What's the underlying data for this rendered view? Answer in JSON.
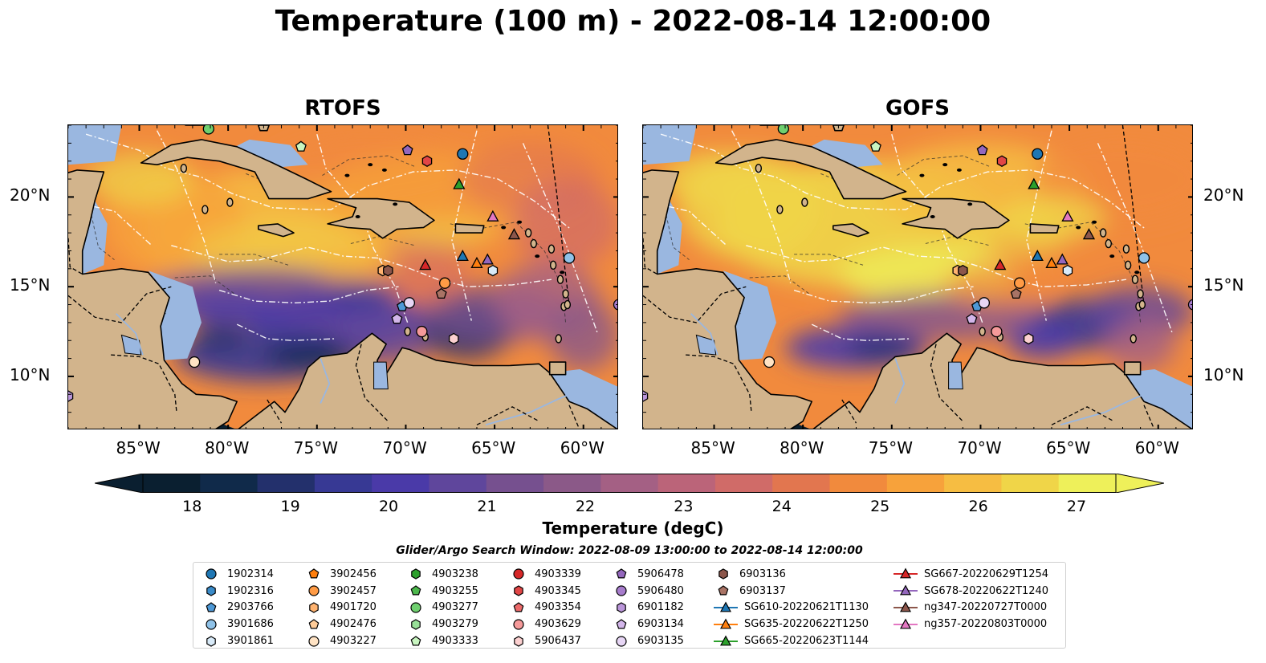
{
  "title": "Temperature (100 m) - 2022-08-14 12:00:00",
  "panels": [
    {
      "title": "RTOFS"
    },
    {
      "title": "GOFS"
    }
  ],
  "axes": {
    "lon_ticks": [
      "85°W",
      "80°W",
      "75°W",
      "70°W",
      "65°W",
      "60°W"
    ],
    "lon_values": [
      -85,
      -80,
      -75,
      -70,
      -65,
      -60
    ],
    "lat_ticks": [
      "20°N",
      "15°N",
      "10°N"
    ],
    "lat_values": [
      20,
      15,
      10
    ],
    "lon_range": [
      -89,
      -58
    ],
    "lat_range": [
      7,
      24
    ]
  },
  "colorbar": {
    "label": "Temperature (degC)",
    "ticks": [
      "18",
      "19",
      "20",
      "21",
      "22",
      "23",
      "24",
      "25",
      "26",
      "27"
    ],
    "range": [
      17.5,
      27.4
    ],
    "colors": [
      "#0a1f30",
      "#102a4a",
      "#23306c",
      "#373994",
      "#4a3aa8",
      "#5f469c",
      "#76508f",
      "#8b5988",
      "#a46084",
      "#bb6479",
      "#d06b68",
      "#e2764f",
      "#f18a3d",
      "#f7a23b",
      "#f6bd42",
      "#f0d548",
      "#eef05a"
    ]
  },
  "search_window": "Glider/Argo Search Window: 2022-08-09 13:00:00 to 2022-08-14 12:00:00",
  "legend": [
    {
      "label": "1902314",
      "marker": "circle",
      "color": "#1f77b4"
    },
    {
      "label": "1902316",
      "marker": "hexagon",
      "color": "#3a8bc9"
    },
    {
      "label": "2903766",
      "marker": "pentagon",
      "color": "#4d98d6"
    },
    {
      "label": "3901686",
      "marker": "circle",
      "color": "#8fc2e8"
    },
    {
      "label": "3901861",
      "marker": "hexagon",
      "color": "#d8eaf8"
    },
    {
      "label": "3902456",
      "marker": "pentagon",
      "color": "#ff7f0e"
    },
    {
      "label": "3902457",
      "marker": "circle",
      "color": "#ff9b45"
    },
    {
      "label": "4901720",
      "marker": "hexagon",
      "color": "#ffb370"
    },
    {
      "label": "4902476",
      "marker": "pentagon",
      "color": "#ffcc99"
    },
    {
      "label": "4903227",
      "marker": "circle",
      "color": "#ffe3c4"
    },
    {
      "label": "4903238",
      "marker": "hexagon",
      "color": "#2ca02c"
    },
    {
      "label": "4903255",
      "marker": "pentagon",
      "color": "#4cb84c"
    },
    {
      "label": "4903277",
      "marker": "circle",
      "color": "#6fd06f"
    },
    {
      "label": "4903279",
      "marker": "hexagon",
      "color": "#98e098"
    },
    {
      "label": "4903333",
      "marker": "pentagon",
      "color": "#c8f5c0"
    },
    {
      "label": "4903339",
      "marker": "circle",
      "color": "#d62728"
    },
    {
      "label": "4903345",
      "marker": "hexagon",
      "color": "#e24646"
    },
    {
      "label": "4903354",
      "marker": "pentagon",
      "color": "#ec6a6a"
    },
    {
      "label": "4903629",
      "marker": "circle",
      "color": "#f59a9a"
    },
    {
      "label": "5906437",
      "marker": "hexagon",
      "color": "#fcd0d0"
    },
    {
      "label": "5906478",
      "marker": "pentagon",
      "color": "#9467bd"
    },
    {
      "label": "5906480",
      "marker": "circle",
      "color": "#a77ccc"
    },
    {
      "label": "6901182",
      "marker": "hexagon",
      "color": "#bb96da"
    },
    {
      "label": "6903134",
      "marker": "pentagon",
      "color": "#d3b6ea"
    },
    {
      "label": "6903135",
      "marker": "circle",
      "color": "#e7d6f5"
    },
    {
      "label": "6903136",
      "marker": "hexagon",
      "color": "#8c564b"
    },
    {
      "label": "6903137",
      "marker": "pentagon",
      "color": "#a97365"
    },
    {
      "label": "SG610-20220621T1130",
      "marker": "triangle",
      "color": "#1f77b4",
      "line": true
    },
    {
      "label": "SG635-20220622T1250",
      "marker": "triangle",
      "color": "#ff7f0e",
      "line": true
    },
    {
      "label": "SG665-20220623T1144",
      "marker": "triangle",
      "color": "#2ca02c",
      "line": true
    },
    {
      "label": "SG667-20220629T1254",
      "marker": "triangle",
      "color": "#d62728",
      "line": true
    },
    {
      "label": "SG678-20220622T1240",
      "marker": "triangle",
      "color": "#9467bd",
      "line": true
    },
    {
      "label": "ng347-20220727T0000",
      "marker": "triangle",
      "color": "#8c564b",
      "line": true
    },
    {
      "label": "ng357-20220803T0000",
      "marker": "triangle",
      "color": "#e377c2",
      "line": true
    }
  ],
  "observations": [
    {
      "platform": "1902314",
      "lon": -66.8,
      "lat": 22.4
    },
    {
      "platform": "3901686",
      "lon": -60.8,
      "lat": 16.6
    },
    {
      "platform": "3901861",
      "lon": -65.1,
      "lat": 15.9
    },
    {
      "platform": "2903766",
      "lon": -70.2,
      "lat": 13.9
    },
    {
      "platform": "3902457",
      "lon": -67.8,
      "lat": 15.2
    },
    {
      "platform": "4901720",
      "lon": -71.3,
      "lat": 15.9
    },
    {
      "platform": "4903227",
      "lon": -81.9,
      "lat": 10.8
    },
    {
      "platform": "4903277",
      "lon": -81.1,
      "lat": 23.8
    },
    {
      "platform": "4903333",
      "lon": -75.9,
      "lat": 22.8
    },
    {
      "platform": "4903345",
      "lon": -68.8,
      "lat": 22.0
    },
    {
      "platform": "4903629",
      "lon": -69.1,
      "lat": 12.5
    },
    {
      "platform": "5906437",
      "lon": -67.3,
      "lat": 12.1
    },
    {
      "platform": "5906478",
      "lon": -69.9,
      "lat": 22.6
    },
    {
      "platform": "6903134",
      "lon": -70.5,
      "lat": 13.2
    },
    {
      "platform": "6903135",
      "lon": -69.8,
      "lat": 14.1
    },
    {
      "platform": "6903136",
      "lon": -71.0,
      "lat": 15.9
    },
    {
      "platform": "6903137",
      "lon": -68.0,
      "lat": 14.6
    },
    {
      "platform": "6901182",
      "lon": -89.0,
      "lat": 8.9
    },
    {
      "platform": "5906480",
      "lon": -58.0,
      "lat": 14.0
    },
    {
      "platform": "SG610-20220621T1130",
      "lon": -66.8,
      "lat": 16.7
    },
    {
      "platform": "SG635-20220622T1250",
      "lon": -66.0,
      "lat": 16.3
    },
    {
      "platform": "SG665-20220623T1144",
      "lon": -67.0,
      "lat": 20.7
    },
    {
      "platform": "SG667-20220629T1254",
      "lon": -68.9,
      "lat": 16.2
    },
    {
      "platform": "SG678-20220622T1240",
      "lon": -65.4,
      "lat": 16.5
    },
    {
      "platform": "ng347-20220727T0000",
      "lon": -63.9,
      "lat": 17.9
    },
    {
      "platform": "ng357-20220803T0000",
      "lon": -65.1,
      "lat": 18.9
    }
  ]
}
